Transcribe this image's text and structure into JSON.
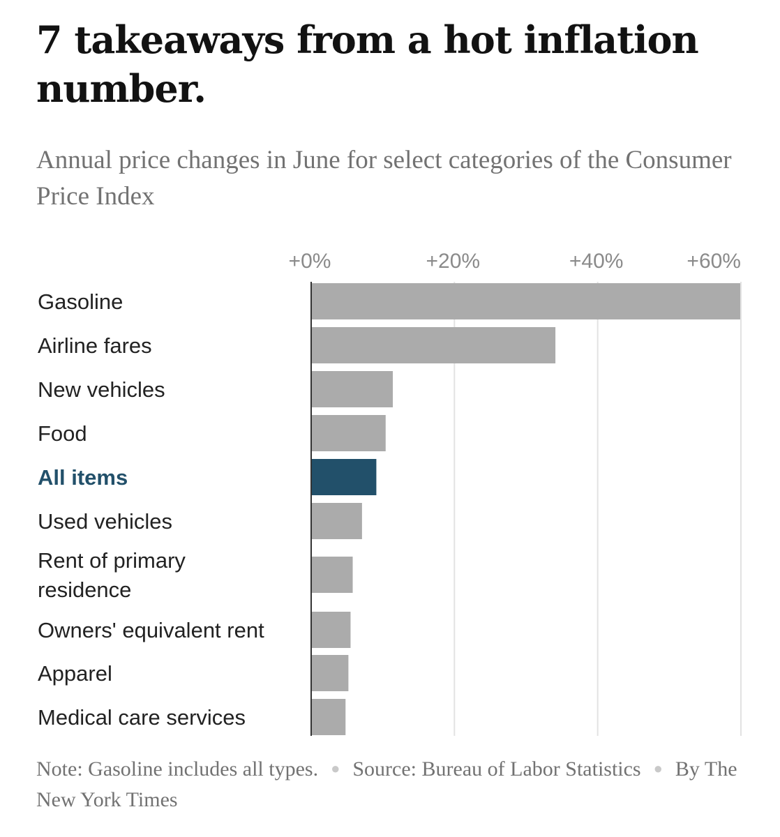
{
  "chart_data": {
    "type": "bar",
    "orientation": "horizontal",
    "title": "7 takeaways from a hot inflation number.",
    "subtitle": "Annual price changes in June for select categories of the Consumer Price Index",
    "categories": [
      [
        "Gasoline"
      ],
      [
        "Airline fares"
      ],
      [
        "New vehicles"
      ],
      [
        "Food"
      ],
      [
        "All items"
      ],
      [
        "Used vehicles"
      ],
      [
        "Rent of primary",
        "residence"
      ],
      [
        "Owners' equivalent rent"
      ],
      [
        "Apparel"
      ],
      [
        "Medical care services"
      ]
    ],
    "values": [
      59.9,
      34.1,
      11.4,
      10.4,
      9.1,
      7.1,
      5.8,
      5.5,
      5.2,
      4.8
    ],
    "highlight": "All items",
    "xlim": [
      0,
      60
    ],
    "xticks": [
      0,
      20,
      40,
      60
    ],
    "xtick_labels": [
      "+0%",
      "+20%",
      "+40%",
      "+60%"
    ],
    "grid": true,
    "colors": {
      "bar": "#ababab",
      "highlight_bar": "#22506a",
      "grid": "#e2e2e2",
      "axis": "#333333"
    }
  },
  "footer": {
    "note": "Note: Gasoline includes all types.",
    "source": "Source: Bureau of Labor Statistics",
    "byline": "By The New York Times",
    "separator": "●"
  }
}
